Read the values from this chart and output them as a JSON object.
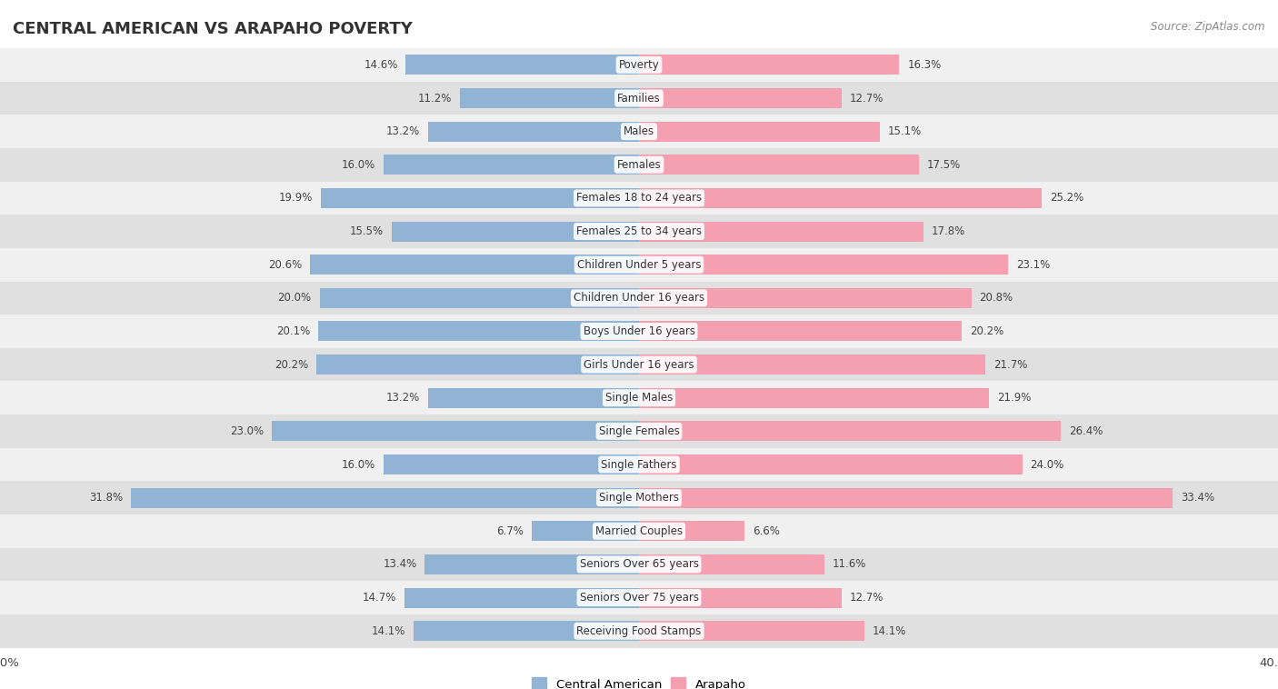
{
  "title": "CENTRAL AMERICAN VS ARAPAHO POVERTY",
  "source": "Source: ZipAtlas.com",
  "categories": [
    "Poverty",
    "Families",
    "Males",
    "Females",
    "Females 18 to 24 years",
    "Females 25 to 34 years",
    "Children Under 5 years",
    "Children Under 16 years",
    "Boys Under 16 years",
    "Girls Under 16 years",
    "Single Males",
    "Single Females",
    "Single Fathers",
    "Single Mothers",
    "Married Couples",
    "Seniors Over 65 years",
    "Seniors Over 75 years",
    "Receiving Food Stamps"
  ],
  "central_american": [
    14.6,
    11.2,
    13.2,
    16.0,
    19.9,
    15.5,
    20.6,
    20.0,
    20.1,
    20.2,
    13.2,
    23.0,
    16.0,
    31.8,
    6.7,
    13.4,
    14.7,
    14.1
  ],
  "arapaho": [
    16.3,
    12.7,
    15.1,
    17.5,
    25.2,
    17.8,
    23.1,
    20.8,
    20.2,
    21.7,
    21.9,
    26.4,
    24.0,
    33.4,
    6.6,
    11.6,
    12.7,
    14.1
  ],
  "ca_color": "#92b4d4",
  "ar_color": "#f4a0b0",
  "ca_label": "Central American",
  "ar_label": "Arapaho",
  "xlim": 40.0,
  "bg_row_light": "#f0f0f0",
  "bg_row_dark": "#e0e0e0",
  "bar_height": 0.6
}
